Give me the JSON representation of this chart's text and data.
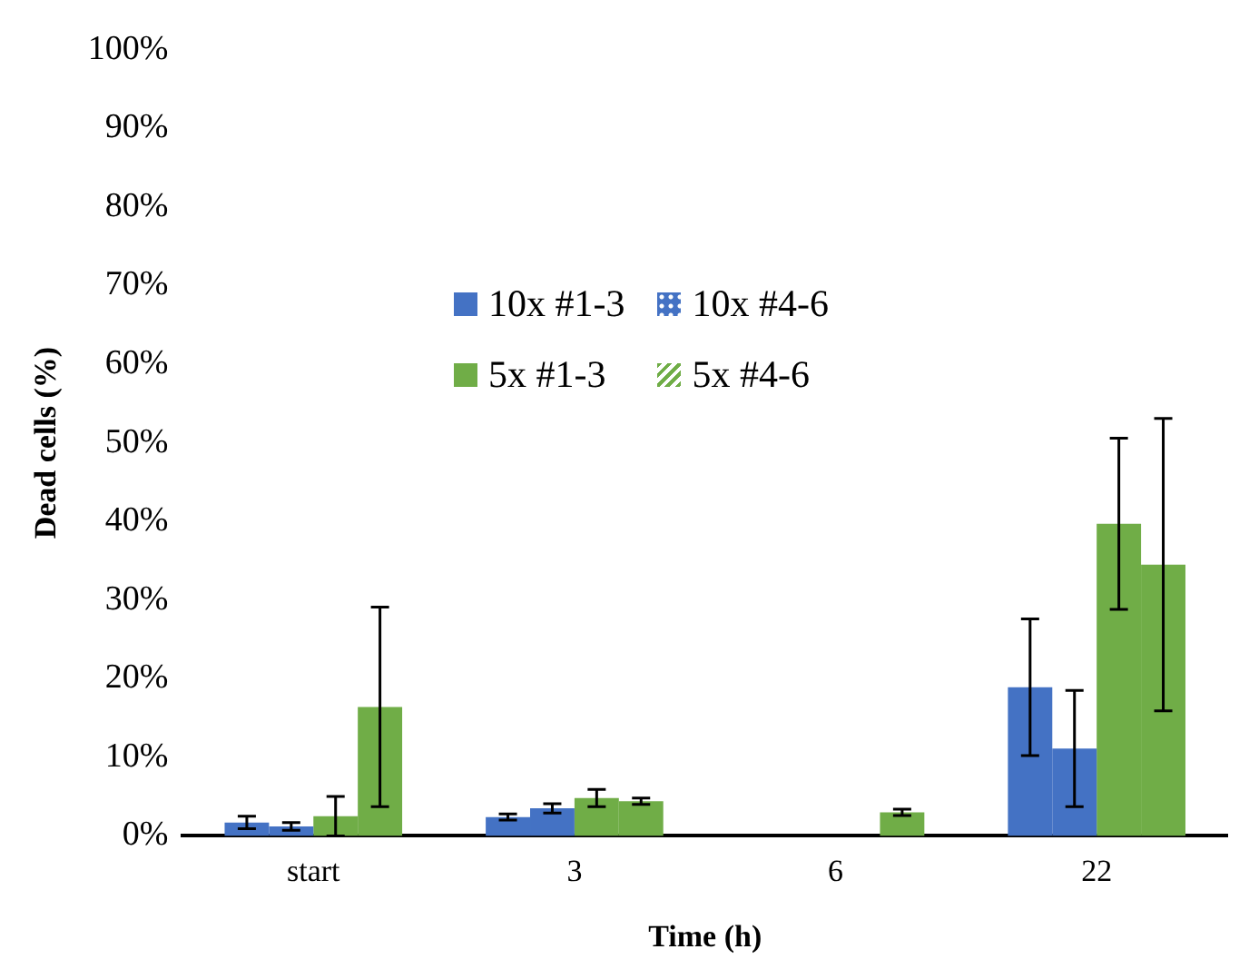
{
  "chart_data": {
    "type": "bar",
    "xlabel": "Time (h)",
    "ylabel": "Dead cells (%)",
    "categories": [
      "start",
      "3",
      "6",
      "22"
    ],
    "series": [
      {
        "name": "10x #1-3",
        "color": "#4472c4",
        "values": [
          1.7,
          2.4,
          0,
          18.9
        ],
        "errors": [
          0.8,
          0.4,
          null,
          8.7
        ]
      },
      {
        "name": "10x #4-6",
        "color": "#4472c4",
        "values": [
          1.2,
          3.5,
          0,
          11.1
        ],
        "errors": [
          0.5,
          0.6,
          null,
          7.4
        ]
      },
      {
        "name": "5x #1-3",
        "color": "#70ad47",
        "values": [
          2.5,
          4.8,
          0,
          39.7
        ],
        "errors": [
          2.5,
          1.1,
          null,
          10.9
        ]
      },
      {
        "name": "5x #4-6",
        "color": "#70ad47",
        "values": [
          16.4,
          4.4,
          3.0,
          34.5
        ],
        "errors": [
          12.7,
          0.4,
          0.4,
          18.6
        ]
      }
    ],
    "ylim": [
      0,
      100
    ],
    "yticks": [
      {
        "value": 0,
        "label": "0%"
      },
      {
        "value": 10,
        "label": "10%"
      },
      {
        "value": 20,
        "label": "20%"
      },
      {
        "value": 30,
        "label": "30%"
      },
      {
        "value": 40,
        "label": "40%"
      },
      {
        "value": 50,
        "label": "50%"
      },
      {
        "value": 60,
        "label": "60%"
      },
      {
        "value": 70,
        "label": "70%"
      },
      {
        "value": 80,
        "label": "80%"
      },
      {
        "value": 90,
        "label": "90%"
      },
      {
        "value": 100,
        "label": "100%"
      }
    ],
    "grid": false,
    "legend": "top"
  }
}
